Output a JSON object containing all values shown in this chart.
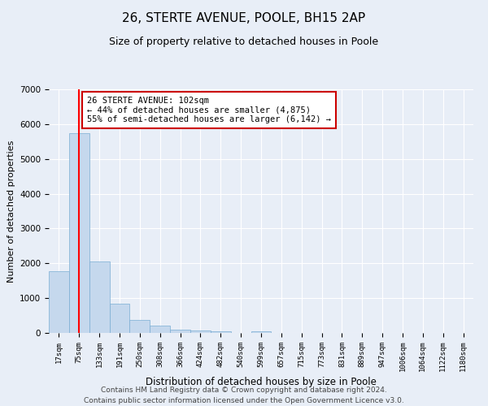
{
  "title": "26, STERTE AVENUE, POOLE, BH15 2AP",
  "subtitle": "Size of property relative to detached houses in Poole",
  "xlabel": "Distribution of detached houses by size in Poole",
  "ylabel": "Number of detached properties",
  "categories": [
    "17sqm",
    "75sqm",
    "133sqm",
    "191sqm",
    "250sqm",
    "308sqm",
    "366sqm",
    "424sqm",
    "482sqm",
    "540sqm",
    "599sqm",
    "657sqm",
    "715sqm",
    "773sqm",
    "831sqm",
    "889sqm",
    "947sqm",
    "1006sqm",
    "1064sqm",
    "1122sqm",
    "1180sqm"
  ],
  "values": [
    1780,
    5750,
    2050,
    830,
    370,
    220,
    100,
    60,
    50,
    0,
    50,
    0,
    0,
    0,
    0,
    0,
    0,
    0,
    0,
    0,
    0
  ],
  "bar_color": "#c5d8ed",
  "bar_edge_color": "#7aadd4",
  "red_line_x": 1.0,
  "ylim": [
    0,
    7000
  ],
  "yticks": [
    0,
    1000,
    2000,
    3000,
    4000,
    5000,
    6000,
    7000
  ],
  "annotation_title": "26 STERTE AVENUE: 102sqm",
  "annotation_line1": "← 44% of detached houses are smaller (4,875)",
  "annotation_line2": "55% of semi-detached houses are larger (6,142) →",
  "annotation_box_color": "#ffffff",
  "annotation_box_edge_color": "#cc0000",
  "footer_line1": "Contains HM Land Registry data © Crown copyright and database right 2024.",
  "footer_line2": "Contains public sector information licensed under the Open Government Licence v3.0.",
  "background_color": "#e8eef7",
  "plot_bg_color": "#e8eef7",
  "grid_color": "#ffffff",
  "title_fontsize": 11,
  "subtitle_fontsize": 9,
  "footer_fontsize": 6.5
}
